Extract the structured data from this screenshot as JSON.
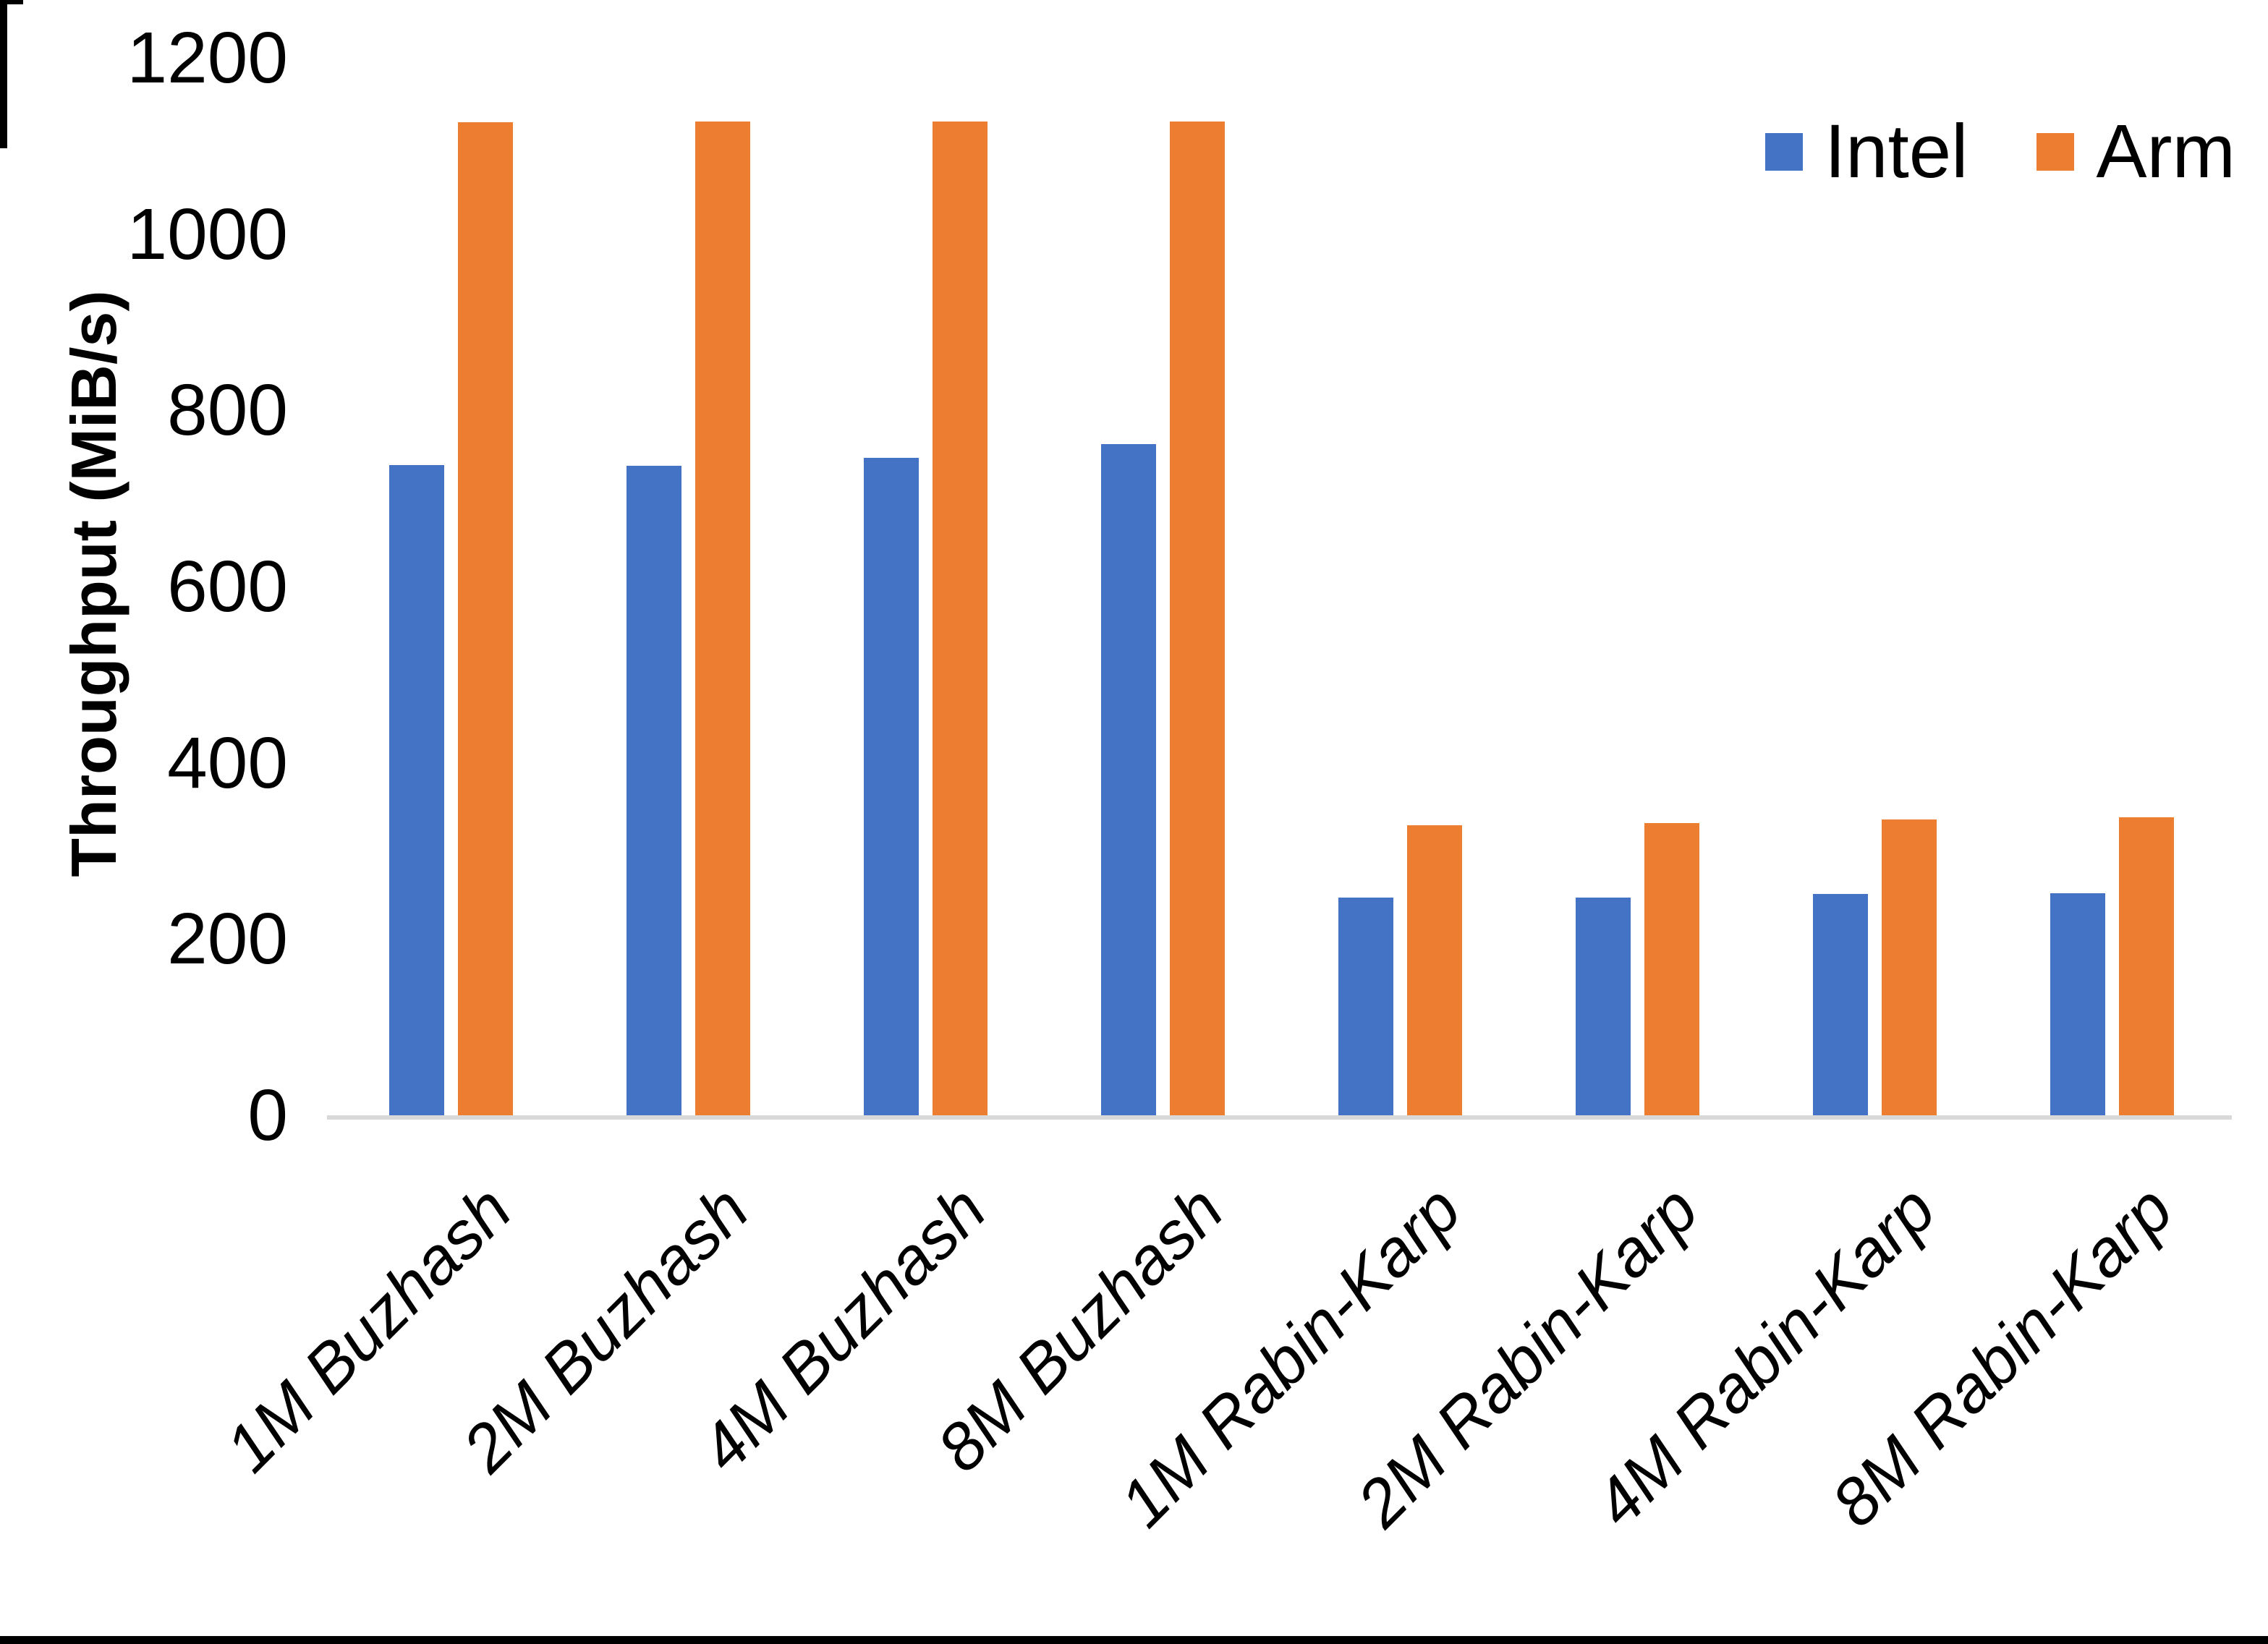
{
  "chart_data": {
    "type": "bar",
    "title": "",
    "xlabel": "",
    "ylabel": "Throughput (MiB/s)",
    "ylim": [
      0,
      1200
    ],
    "yticks": [
      0,
      200,
      400,
      600,
      800,
      1000,
      1200
    ],
    "grid": false,
    "legend_position": "top-right",
    "categories": [
      "1M Buzhash",
      "2M Buzhash",
      "4M Buzhash",
      "8M Buzhash",
      "1M Rabin-Karp",
      "2M Rabin-Karp",
      "4M Rabin-Karp",
      "8M Rabin-Karp"
    ],
    "series": [
      {
        "name": "Intel",
        "color": "#4472C4",
        "values": [
          738,
          737,
          746,
          762,
          247,
          247,
          251,
          252
        ]
      },
      {
        "name": "Arm",
        "color": "#ED7D31",
        "values": [
          1127,
          1128,
          1128,
          1128,
          329,
          332,
          336,
          338
        ]
      }
    ],
    "axis_line_color": "#D9D9D9",
    "text_color": "#000000"
  }
}
